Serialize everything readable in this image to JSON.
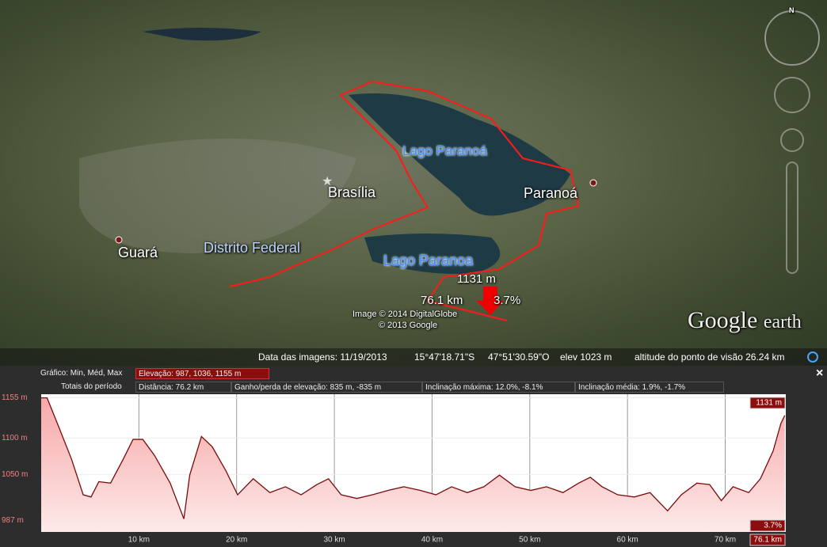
{
  "map": {
    "compass": "N",
    "labels": [
      "Lago Paranoá",
      "Brasília",
      "Paranoá",
      "Guará",
      "Distrito Federal",
      "Lago Paranoa"
    ],
    "readout": {
      "elevation": "1131 m",
      "distance": "76.1 km",
      "slope": "3.7%"
    },
    "credits": [
      "Image © 2014 DigitalGlobe",
      "© 2013 Google"
    ],
    "logo": {
      "brand": "Google",
      "product": "earth"
    }
  },
  "status_bar": {
    "imagery_date": "Data das imagens: 11/19/2013",
    "latitude": "15°47'18.71\"S",
    "longitude": "47°51'30.59\"O",
    "elevation": "elev  1023 m",
    "eye_altitude": "altitude do ponto de visão  26.24 km"
  },
  "profile_header": {
    "row1_label": "Gráfico: Min, Méd, Max",
    "row1_elevation": "Elevação: 987, 1036, 1155 m",
    "row2_label": "Totais do período",
    "row2_items": [
      "Distância: 76.2 km",
      "Ganho/perda de elevação: 835 m, -835 m",
      "Inclinação máxima: 12.0%, -8.1%",
      "Inclinação média: 1.9%, -1.7%"
    ],
    "close": "×"
  },
  "chart_data": {
    "type": "area",
    "x": [
      0,
      0.6,
      1.8,
      3.1,
      4.3,
      5.1,
      5.9,
      7.1,
      8.4,
      9.4,
      10.4,
      11.6,
      13.2,
      14.6,
      15.2,
      16.4,
      17.5,
      18.9,
      20.1,
      21.7,
      23.4,
      25.0,
      26.6,
      28.2,
      29.4,
      30.7,
      32.3,
      33.9,
      35.5,
      37.1,
      38.8,
      40.4,
      42.0,
      43.6,
      45.3,
      46.9,
      48.5,
      50.1,
      51.7,
      53.4,
      55.0,
      56.2,
      57.4,
      59.0,
      60.7,
      62.3,
      64.1,
      65.5,
      67.1,
      68.4,
      69.6,
      70.8,
      72.4,
      73.6,
      74.9,
      75.7,
      76.1
    ],
    "values": [
      1155,
      1155,
      1115,
      1071,
      1022,
      1019,
      1040,
      1038,
      1071,
      1098,
      1098,
      1076,
      1038,
      989,
      1049,
      1102,
      1088,
      1055,
      1022,
      1044,
      1025,
      1033,
      1022,
      1036,
      1044,
      1022,
      1017,
      1022,
      1028,
      1033,
      1028,
      1022,
      1033,
      1025,
      1033,
      1049,
      1033,
      1028,
      1033,
      1025,
      1038,
      1046,
      1033,
      1022,
      1019,
      1025,
      1000,
      1022,
      1038,
      1036,
      1014,
      1033,
      1025,
      1044,
      1082,
      1120,
      1131
    ],
    "color": "#7a0a0a",
    "xlim": [
      0,
      76.2
    ],
    "ylim": [
      971,
      1160
    ],
    "xticks": [
      {
        "value": 10,
        "label": "10 km"
      },
      {
        "value": 20,
        "label": "20 km"
      },
      {
        "value": 30,
        "label": "30 km"
      },
      {
        "value": 40,
        "label": "40 km"
      },
      {
        "value": 50,
        "label": "50 km"
      },
      {
        "value": 60,
        "label": "60 km"
      },
      {
        "value": 70,
        "label": "70 km"
      }
    ],
    "yticks": [
      {
        "value": 1155,
        "label": "1155 m"
      },
      {
        "value": 1100,
        "label": "1100 m"
      },
      {
        "value": 1050,
        "label": "1050 m"
      },
      {
        "value": 987,
        "label": "987 m"
      }
    ],
    "grid": true,
    "annotations": [
      "1131 m",
      "3.7%",
      "76.1 km"
    ]
  }
}
